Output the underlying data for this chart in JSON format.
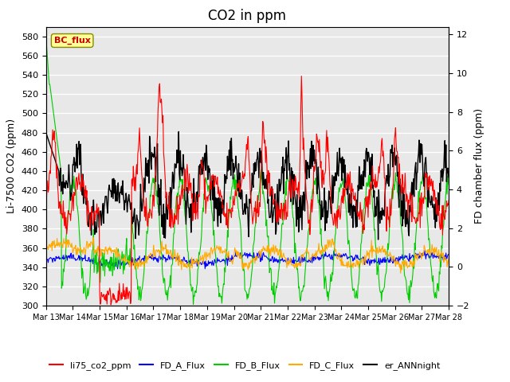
{
  "title": "CO2 in ppm",
  "ylabel_left": "Li-7500 CO2 (ppm)",
  "ylabel_right": "FD chamber flux (ppm)",
  "ylim_left": [
    300,
    590
  ],
  "ylim_right": [
    -2,
    12.4
  ],
  "yticks_left": [
    300,
    320,
    340,
    360,
    380,
    400,
    420,
    440,
    460,
    480,
    500,
    520,
    540,
    560,
    580
  ],
  "yticks_right": [
    -2,
    0,
    2,
    4,
    6,
    8,
    10,
    12
  ],
  "xtick_labels": [
    "Mar 13",
    "Mar 14",
    "Mar 15",
    "Mar 16",
    "Mar 17",
    "Mar 18",
    "Mar 19",
    "Mar 20",
    "Mar 21",
    "Mar 22",
    "Mar 23",
    "Mar 24",
    "Mar 25",
    "Mar 26",
    "Mar 27",
    "Mar 28"
  ],
  "legend_entries": [
    "li75_co2_ppm",
    "FD_A_Flux",
    "FD_B_Flux",
    "FD_C_Flux",
    "er_ANNnight"
  ],
  "legend_colors": [
    "#ff0000",
    "#0000ff",
    "#00cc00",
    "#ffaa00",
    "#000000"
  ],
  "annotation_text": "BC_flux",
  "annotation_color": "#cc0000",
  "annotation_bg": "#ffff99",
  "bg_color": "#e8e8e8",
  "grid_color": "#ffffff",
  "title_fontsize": 12
}
